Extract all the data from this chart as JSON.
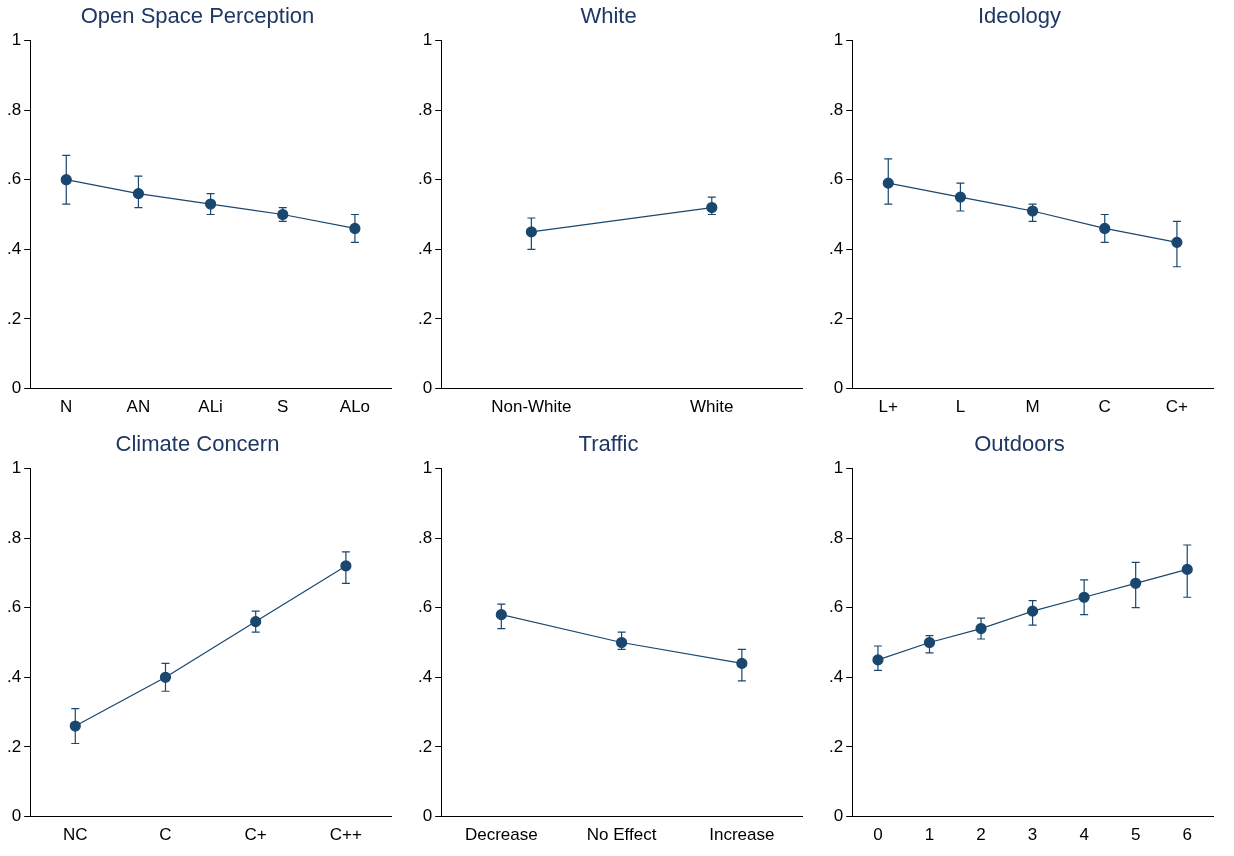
{
  "chart_data": [
    {
      "type": "line",
      "title": "Open Space Perception",
      "categories": [
        "N",
        "AN",
        "ALi",
        "S",
        "ALo"
      ],
      "values": [
        0.6,
        0.56,
        0.53,
        0.5,
        0.46
      ],
      "errors": [
        [
          0.53,
          0.67
        ],
        [
          0.52,
          0.61
        ],
        [
          0.5,
          0.56
        ],
        [
          0.48,
          0.52
        ],
        [
          0.42,
          0.5
        ]
      ],
      "color": "#1a476f",
      "ylim": [
        0,
        1
      ],
      "yticks": [
        {
          "value": 0,
          "label": "0"
        },
        {
          "value": 0.2,
          "label": ".2"
        },
        {
          "value": 0.4,
          "label": ".4"
        },
        {
          "value": 0.6,
          "label": ".6"
        },
        {
          "value": 0.8,
          "label": ".8"
        },
        {
          "value": 1,
          "label": "1"
        }
      ],
      "grid": false,
      "legend": false,
      "marker": "circle"
    },
    {
      "type": "line",
      "title": "White",
      "categories": [
        "Non-White",
        "White"
      ],
      "values": [
        0.45,
        0.52
      ],
      "errors": [
        [
          0.4,
          0.49
        ],
        [
          0.5,
          0.55
        ]
      ],
      "color": "#1a476f",
      "ylim": [
        0,
        1
      ],
      "yticks": [
        {
          "value": 0,
          "label": "0"
        },
        {
          "value": 0.2,
          "label": ".2"
        },
        {
          "value": 0.4,
          "label": ".4"
        },
        {
          "value": 0.6,
          "label": ".6"
        },
        {
          "value": 0.8,
          "label": ".8"
        },
        {
          "value": 1,
          "label": "1"
        }
      ],
      "grid": false,
      "legend": false,
      "marker": "circle"
    },
    {
      "type": "line",
      "title": "Ideology",
      "categories": [
        "L+",
        "L",
        "M",
        "C",
        "C+"
      ],
      "values": [
        0.59,
        0.55,
        0.51,
        0.46,
        0.42
      ],
      "errors": [
        [
          0.53,
          0.66
        ],
        [
          0.51,
          0.59
        ],
        [
          0.48,
          0.53
        ],
        [
          0.42,
          0.5
        ],
        [
          0.35,
          0.48
        ]
      ],
      "color": "#1a476f",
      "ylim": [
        0,
        1
      ],
      "yticks": [
        {
          "value": 0,
          "label": "0"
        },
        {
          "value": 0.2,
          "label": ".2"
        },
        {
          "value": 0.4,
          "label": ".4"
        },
        {
          "value": 0.6,
          "label": ".6"
        },
        {
          "value": 0.8,
          "label": ".8"
        },
        {
          "value": 1,
          "label": "1"
        }
      ],
      "grid": false,
      "legend": false,
      "marker": "circle"
    },
    {
      "type": "line",
      "title": "Climate Concern",
      "categories": [
        "NC",
        "C",
        "C+",
        "C++"
      ],
      "values": [
        0.26,
        0.4,
        0.56,
        0.72
      ],
      "errors": [
        [
          0.21,
          0.31
        ],
        [
          0.36,
          0.44
        ],
        [
          0.53,
          0.59
        ],
        [
          0.67,
          0.76
        ]
      ],
      "color": "#1a476f",
      "ylim": [
        0,
        1
      ],
      "yticks": [
        {
          "value": 0,
          "label": "0"
        },
        {
          "value": 0.2,
          "label": ".2"
        },
        {
          "value": 0.4,
          "label": ".4"
        },
        {
          "value": 0.6,
          "label": ".6"
        },
        {
          "value": 0.8,
          "label": ".8"
        },
        {
          "value": 1,
          "label": "1"
        }
      ],
      "grid": false,
      "legend": false,
      "marker": "circle"
    },
    {
      "type": "line",
      "title": "Traffic",
      "categories": [
        "Decrease",
        "No Effect",
        "Increase"
      ],
      "values": [
        0.58,
        0.5,
        0.44
      ],
      "errors": [
        [
          0.54,
          0.61
        ],
        [
          0.48,
          0.53
        ],
        [
          0.39,
          0.48
        ]
      ],
      "color": "#1a476f",
      "ylim": [
        0,
        1
      ],
      "yticks": [
        {
          "value": 0,
          "label": "0"
        },
        {
          "value": 0.2,
          "label": ".2"
        },
        {
          "value": 0.4,
          "label": ".4"
        },
        {
          "value": 0.6,
          "label": ".6"
        },
        {
          "value": 0.8,
          "label": ".8"
        },
        {
          "value": 1,
          "label": "1"
        }
      ],
      "grid": false,
      "legend": false,
      "marker": "circle"
    },
    {
      "type": "line",
      "title": "Outdoors",
      "categories": [
        "0",
        "1",
        "2",
        "3",
        "4",
        "5",
        "6"
      ],
      "values": [
        0.45,
        0.5,
        0.54,
        0.59,
        0.63,
        0.67,
        0.71
      ],
      "errors": [
        [
          0.42,
          0.49
        ],
        [
          0.47,
          0.52
        ],
        [
          0.51,
          0.57
        ],
        [
          0.55,
          0.62
        ],
        [
          0.58,
          0.68
        ],
        [
          0.6,
          0.73
        ],
        [
          0.63,
          0.78
        ]
      ],
      "color": "#1a476f",
      "ylim": [
        0,
        1
      ],
      "yticks": [
        {
          "value": 0,
          "label": "0"
        },
        {
          "value": 0.2,
          "label": ".2"
        },
        {
          "value": 0.4,
          "label": ".4"
        },
        {
          "value": 0.6,
          "label": ".6"
        },
        {
          "value": 0.8,
          "label": ".8"
        },
        {
          "value": 1,
          "label": "1"
        }
      ],
      "grid": false,
      "legend": false,
      "marker": "circle"
    }
  ]
}
